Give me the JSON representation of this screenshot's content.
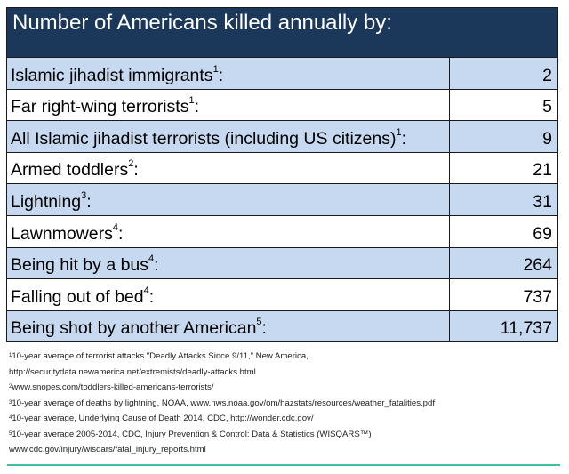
{
  "title": "Number of Americans killed annually by:",
  "rows": [
    {
      "label": "Islamic jihadist immigrants",
      "note": "1",
      "value": "2"
    },
    {
      "label": "Far right-wing terrorists",
      "note": "1",
      "value": "5"
    },
    {
      "label": "All Islamic jihadist terrorists (including US citizens)",
      "note": "1",
      "value": "9"
    },
    {
      "label": "Armed toddlers",
      "note": "2",
      "value": "21"
    },
    {
      "label": "Lightning",
      "note": "3",
      "value": "31"
    },
    {
      "label": "Lawnmowers",
      "note": "4",
      "value": "69"
    },
    {
      "label": "Being hit by a bus",
      "note": "4",
      "value": "264"
    },
    {
      "label": "Falling out of bed",
      "note": "4",
      "value": "737"
    },
    {
      "label": "Being shot by another American",
      "note": "5",
      "value": "11,737"
    }
  ],
  "footnotes": [
    {
      "num": "1",
      "lines": [
        "10-year average of terrorist attacks \"Deadly Attacks Since 9/11,\" New America,",
        "http://securitydata.newamerica.net/extremists/deadly-attacks.html"
      ]
    },
    {
      "num": "2",
      "lines": [
        "www.snopes.com/toddlers-killed-americans-terrorists/"
      ]
    },
    {
      "num": "3",
      "lines": [
        "10-year average of deaths by lightning, NOAA, www.nws.noaa.gov/om/hazstats/resources/weather_fatalities.pdf"
      ]
    },
    {
      "num": "4",
      "lines": [
        "10-year average, Underlying Cause of Death 2014, CDC, http://wonder.cdc.gov/"
      ]
    },
    {
      "num": "5",
      "lines": [
        "10-year average 2005-2014, CDC, Injury Prevention & Control: Data & Statistics (WISQARS™)",
        "www.cdc.gov/injury/wisqars/fatal_injury_reports.html"
      ]
    }
  ]
}
